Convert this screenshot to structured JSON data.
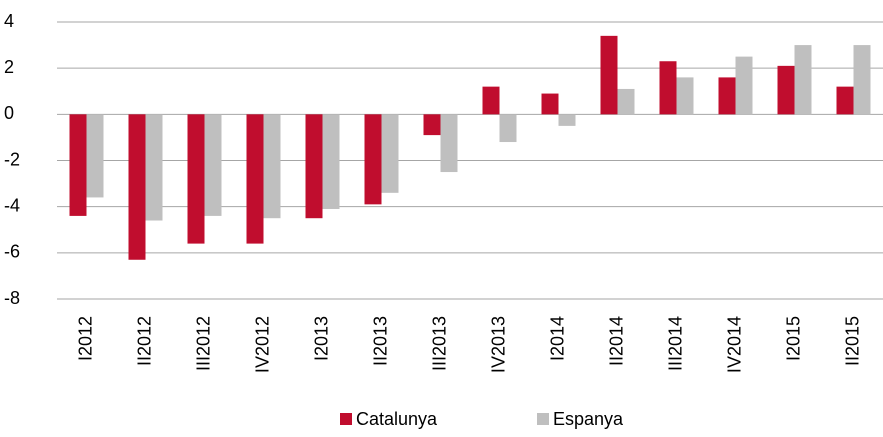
{
  "chart_data": {
    "type": "bar",
    "categories": [
      "I2012",
      "II2012",
      "III2012",
      "IV2012",
      "I2013",
      "II2013",
      "III2013",
      "IV2013",
      "I2014",
      "II2014",
      "III2014",
      "IV2014",
      "I2015",
      "II2015"
    ],
    "series": [
      {
        "name": "Catalunya",
        "color": "#c00d2e",
        "values": [
          -4.4,
          -6.3,
          -5.6,
          -5.6,
          -4.5,
          -3.9,
          -0.9,
          1.2,
          0.9,
          3.4,
          2.3,
          1.6,
          2.1,
          1.2
        ]
      },
      {
        "name": "Espanya",
        "color": "#bfbfbf",
        "values": [
          -3.6,
          -4.6,
          -4.4,
          -4.5,
          -4.1,
          -3.4,
          -2.5,
          -1.2,
          -0.5,
          1.1,
          1.6,
          2.5,
          3.0,
          3.0
        ]
      }
    ],
    "ylim": [
      -8,
      4
    ],
    "yticks": [
      -8,
      -6,
      -4,
      -2,
      0,
      2,
      4
    ],
    "grid": true,
    "legend": "bottom"
  }
}
